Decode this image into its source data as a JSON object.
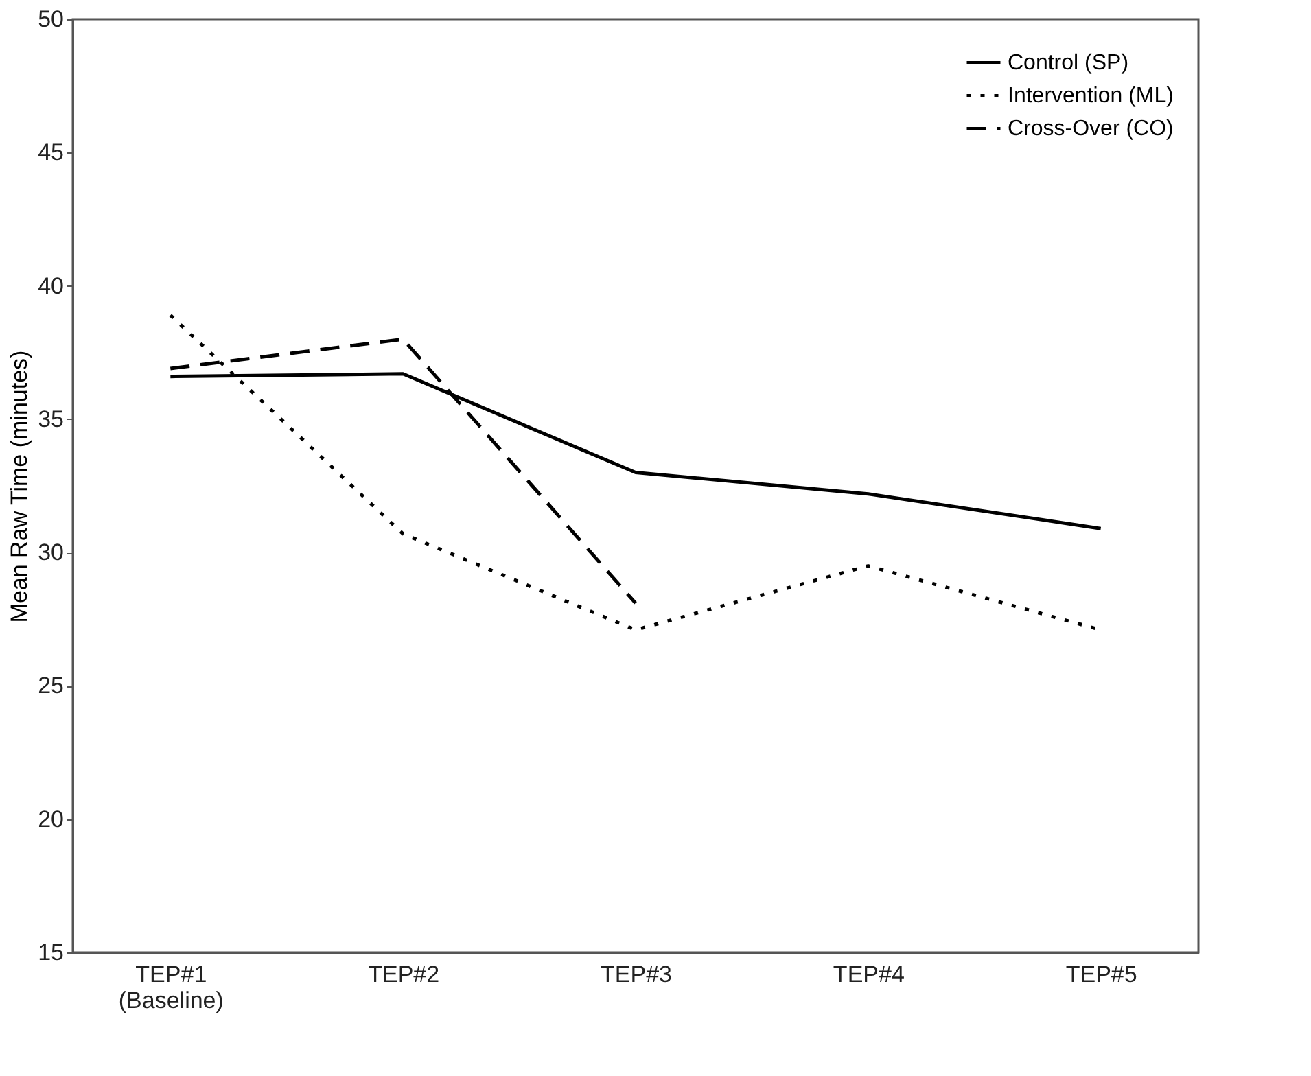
{
  "chart_data": {
    "type": "line",
    "ylabel": "Mean Raw Time (minutes)",
    "categories": [
      "TEP#1\n(Baseline)",
      "TEP#2",
      "TEP#3",
      "TEP#4",
      "TEP#5"
    ],
    "series": [
      {
        "name": "Control (SP)",
        "color": "#000000",
        "line_style": "solid",
        "values": [
          36.6,
          36.7,
          33.0,
          32.2,
          30.9
        ]
      },
      {
        "name": "Intervention (ML)",
        "color": "#000000",
        "line_style": "dotted",
        "values": [
          38.9,
          30.7,
          27.1,
          29.5,
          27.1
        ]
      },
      {
        "name": "Cross-Over (CO)",
        "color": "#000000",
        "line_style": "dashed",
        "values": [
          36.9,
          38.0,
          28.1,
          null,
          null
        ]
      }
    ],
    "ylim": [
      15,
      50
    ],
    "yticks": [
      15,
      20,
      25,
      30,
      35,
      40,
      45,
      50
    ],
    "grid": false,
    "legend": "top right",
    "marker": "none"
  }
}
